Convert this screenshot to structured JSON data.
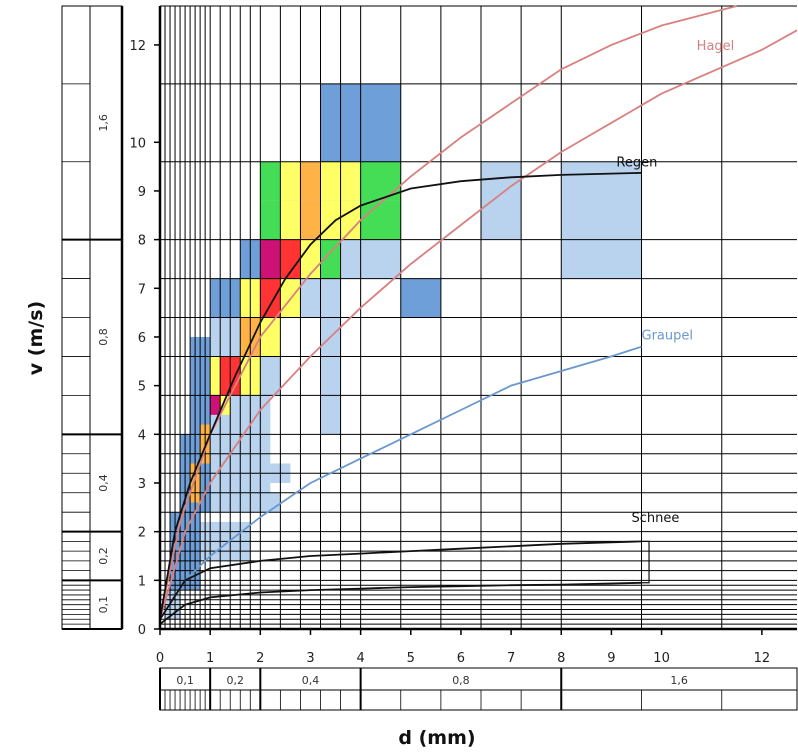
{
  "chart_data": {
    "type": "line",
    "title": "",
    "xlabel": "d (mm)",
    "ylabel": "v (m/s)",
    "xlim": [
      0,
      12.7
    ],
    "ylim": [
      0,
      12.8
    ],
    "grid": true,
    "x_ticks": [
      "0",
      "1",
      "2",
      "3",
      "4",
      "5",
      "6",
      "7",
      "8",
      "9",
      "10",
      "12"
    ],
    "x_tick_values": [
      0,
      1,
      2,
      3,
      4,
      5,
      6,
      7,
      8,
      9,
      10,
      12
    ],
    "y_ticks": [
      "0",
      "1",
      "2",
      "3",
      "4",
      "5",
      "6",
      "7",
      "8",
      "9",
      "10",
      "12"
    ],
    "y_tick_values": [
      0,
      1,
      2,
      3,
      4,
      5,
      6,
      7,
      8,
      9,
      10,
      12
    ],
    "x_class_labels": [
      {
        "label": "0,1",
        "range": [
          0,
          1
        ]
      },
      {
        "label": "0,2",
        "range": [
          1,
          2
        ]
      },
      {
        "label": "0,4",
        "range": [
          2,
          4
        ]
      },
      {
        "label": "0,8",
        "range": [
          4,
          8
        ]
      },
      {
        "label": "1,6",
        "range": [
          8,
          12.7
        ]
      }
    ],
    "y_class_labels": [
      {
        "label": "0,1",
        "range": [
          0,
          1
        ]
      },
      {
        "label": "0,2",
        "range": [
          1,
          2
        ]
      },
      {
        "label": "0,4",
        "range": [
          2,
          4
        ]
      },
      {
        "label": "0,8",
        "range": [
          4,
          8
        ]
      },
      {
        "label": "1,6",
        "range": [
          8,
          12.8
        ]
      }
    ],
    "series": [
      {
        "name": "Hagel",
        "color": "#d98080",
        "curves": [
          {
            "x": [
              0,
              0.4,
              1,
              2,
              3,
              4,
              5,
              6,
              7,
              8,
              9,
              10,
              11.5
            ],
            "y": [
              0.2,
              2.2,
              4.0,
              6.0,
              7.3,
              8.4,
              9.3,
              10.1,
              10.8,
              11.5,
              12.0,
              12.4,
              12.8
            ]
          },
          {
            "x": [
              0,
              0.5,
              1,
              2,
              3,
              4,
              5,
              6,
              7,
              8,
              9,
              10,
              12,
              12.7
            ],
            "y": [
              0.2,
              2.0,
              3.0,
              4.5,
              5.6,
              6.6,
              7.5,
              8.3,
              9.1,
              9.8,
              10.4,
              11.0,
              11.9,
              12.3
            ]
          }
        ]
      },
      {
        "name": "Regen",
        "color": "#111111",
        "curves": [
          {
            "x": [
              0,
              0.3,
              0.6,
              1,
              1.5,
              2,
              2.5,
              3,
              3.5,
              4,
              5,
              6,
              7,
              8,
              9.6
            ],
            "y": [
              0.2,
              2.0,
              3.0,
              4.0,
              5.2,
              6.3,
              7.2,
              7.9,
              8.4,
              8.7,
              9.05,
              9.2,
              9.28,
              9.33,
              9.37
            ]
          }
        ]
      },
      {
        "name": "Graupel",
        "color": "#6a98cc",
        "curves": [
          {
            "x": [
              0,
              0.5,
              1,
              2,
              3,
              4,
              5,
              6,
              7,
              8,
              9,
              9.6
            ],
            "y": [
              0.2,
              1.0,
              1.5,
              2.3,
              3.0,
              3.5,
              4.0,
              4.5,
              5.0,
              5.3,
              5.6,
              5.8
            ]
          }
        ]
      },
      {
        "name": "Schnee",
        "color": "#111111",
        "curves": [
          {
            "x": [
              0,
              0.5,
              1,
              2,
              3,
              4,
              5,
              6,
              7,
              8,
              9.6
            ],
            "y": [
              0.2,
              1.0,
              1.25,
              1.4,
              1.5,
              1.55,
              1.6,
              1.65,
              1.7,
              1.75,
              1.8
            ]
          },
          {
            "x": [
              0,
              0.5,
              1,
              2,
              3,
              4,
              5,
              6,
              7,
              8,
              9.6
            ],
            "y": [
              0.1,
              0.5,
              0.65,
              0.75,
              0.8,
              0.83,
              0.86,
              0.88,
              0.9,
              0.91,
              0.95
            ]
          }
        ]
      }
    ],
    "matrix_cells": [
      {
        "x": [
          3.2,
          4.8
        ],
        "y": [
          9.6,
          11.2
        ],
        "color": "#6f9fd8"
      },
      {
        "x": [
          2.0,
          4.8
        ],
        "y": [
          8.0,
          9.6
        ],
        "color": "#b9d2ee"
      },
      {
        "x": [
          6.4,
          7.2
        ],
        "y": [
          8.0,
          9.6
        ],
        "color": "#b9d2ee"
      },
      {
        "x": [
          8.0,
          9.6
        ],
        "y": [
          7.2,
          9.6
        ],
        "color": "#b9d2ee"
      },
      {
        "x": [
          3.6,
          4.8
        ],
        "y": [
          7.2,
          8.0
        ],
        "color": "#b9d2ee"
      },
      {
        "x": [
          4.8,
          5.6
        ],
        "y": [
          6.4,
          7.2
        ],
        "color": "#6f9fd8"
      },
      {
        "x": [
          1.0,
          1.6
        ],
        "y": [
          6.4,
          7.2
        ],
        "color": "#6f9fd8"
      },
      {
        "x": [
          1.6,
          2.0
        ],
        "y": [
          7.2,
          8.0
        ],
        "color": "#6f9fd8"
      },
      {
        "x": [
          2.0,
          3.6
        ],
        "y": [
          6.4,
          8.0
        ],
        "color": "#b9d2ee"
      },
      {
        "x": [
          1.0,
          2.4
        ],
        "y": [
          4.8,
          6.4
        ],
        "color": "#b9d2ee"
      },
      {
        "x": [
          3.2,
          3.6
        ],
        "y": [
          4.0,
          6.4
        ],
        "color": "#b9d2ee"
      },
      {
        "x": [
          0.6,
          1.0
        ],
        "y": [
          4.0,
          6.0
        ],
        "color": "#6f9fd8"
      },
      {
        "x": [
          1.0,
          2.2
        ],
        "y": [
          4.0,
          4.8
        ],
        "color": "#b9d2ee"
      },
      {
        "x": [
          0.4,
          1.0
        ],
        "y": [
          2.4,
          4.0
        ],
        "color": "#6f9fd8"
      },
      {
        "x": [
          1.0,
          2.2
        ],
        "y": [
          2.4,
          4.0
        ],
        "color": "#b9d2ee"
      },
      {
        "x": [
          2.2,
          2.6
        ],
        "y": [
          3.0,
          3.4
        ],
        "color": "#b9d2ee"
      },
      {
        "x": [
          2.0,
          2.4
        ],
        "y": [
          2.4,
          2.8
        ],
        "color": "#b9d2ee"
      },
      {
        "x": [
          0.2,
          0.8
        ],
        "y": [
          0.8,
          2.4
        ],
        "color": "#6f9fd8"
      },
      {
        "x": [
          0.8,
          1.8
        ],
        "y": [
          1.4,
          2.2
        ],
        "color": "#b9d2ee"
      },
      {
        "x": [
          0.1,
          0.4
        ],
        "y": [
          0.2,
          0.8
        ],
        "color": "#b9d2ee"
      },
      {
        "x": [
          2.0,
          2.4
        ],
        "y": [
          8.8,
          9.6
        ],
        "color": "#44dd55"
      },
      {
        "x": [
          2.4,
          2.8
        ],
        "y": [
          8.8,
          9.6
        ],
        "color": "#ffff66"
      },
      {
        "x": [
          2.8,
          3.2
        ],
        "y": [
          8.8,
          9.6
        ],
        "color": "#ffb347"
      },
      {
        "x": [
          3.2,
          3.6
        ],
        "y": [
          8.8,
          9.6
        ],
        "color": "#ffff66"
      },
      {
        "x": [
          3.6,
          4.0
        ],
        "y": [
          8.8,
          9.6
        ],
        "color": "#ffff66"
      },
      {
        "x": [
          4.0,
          4.8
        ],
        "y": [
          8.8,
          9.6
        ],
        "color": "#44dd55"
      },
      {
        "x": [
          2.0,
          2.4
        ],
        "y": [
          8.0,
          8.8
        ],
        "color": "#44dd55"
      },
      {
        "x": [
          2.4,
          2.8
        ],
        "y": [
          8.0,
          8.8
        ],
        "color": "#ffff66"
      },
      {
        "x": [
          2.8,
          3.2
        ],
        "y": [
          8.0,
          8.8
        ],
        "color": "#ffb347"
      },
      {
        "x": [
          3.2,
          3.6
        ],
        "y": [
          8.0,
          8.8
        ],
        "color": "#ffff66"
      },
      {
        "x": [
          3.6,
          4.0
        ],
        "y": [
          8.0,
          8.8
        ],
        "color": "#ffff66"
      },
      {
        "x": [
          4.0,
          4.8
        ],
        "y": [
          8.0,
          8.8
        ],
        "color": "#44dd55"
      },
      {
        "x": [
          2.0,
          2.4
        ],
        "y": [
          7.2,
          8.0
        ],
        "color": "#cc1177"
      },
      {
        "x": [
          2.4,
          2.8
        ],
        "y": [
          7.2,
          8.0
        ],
        "color": "#ff3333"
      },
      {
        "x": [
          2.8,
          3.2
        ],
        "y": [
          7.2,
          8.0
        ],
        "color": "#ffff66"
      },
      {
        "x": [
          3.2,
          3.6
        ],
        "y": [
          7.2,
          8.0
        ],
        "color": "#44dd55"
      },
      {
        "x": [
          1.6,
          2.0
        ],
        "y": [
          6.4,
          7.2
        ],
        "color": "#ffff66"
      },
      {
        "x": [
          2.0,
          2.4
        ],
        "y": [
          6.4,
          7.2
        ],
        "color": "#ff3333"
      },
      {
        "x": [
          2.4,
          2.8
        ],
        "y": [
          6.4,
          7.2
        ],
        "color": "#ffff66"
      },
      {
        "x": [
          1.6,
          2.0
        ],
        "y": [
          5.6,
          6.4
        ],
        "color": "#ffb347"
      },
      {
        "x": [
          2.0,
          2.4
        ],
        "y": [
          5.6,
          6.4
        ],
        "color": "#ffff66"
      },
      {
        "x": [
          1.0,
          1.2
        ],
        "y": [
          4.8,
          5.6
        ],
        "color": "#ffff66"
      },
      {
        "x": [
          1.2,
          1.6
        ],
        "y": [
          4.8,
          5.6
        ],
        "color": "#ff3333"
      },
      {
        "x": [
          1.6,
          2.0
        ],
        "y": [
          4.8,
          5.6
        ],
        "color": "#ffff66"
      },
      {
        "x": [
          1.0,
          1.2
        ],
        "y": [
          4.4,
          4.8
        ],
        "color": "#cc1177"
      },
      {
        "x": [
          1.2,
          1.4
        ],
        "y": [
          4.4,
          4.8
        ],
        "color": "#ffff66"
      },
      {
        "x": [
          0.8,
          1.0
        ],
        "y": [
          3.4,
          4.2
        ],
        "color": "#ffb347"
      },
      {
        "x": [
          0.6,
          0.8
        ],
        "y": [
          2.6,
          3.4
        ],
        "color": "#ffb347"
      }
    ]
  }
}
